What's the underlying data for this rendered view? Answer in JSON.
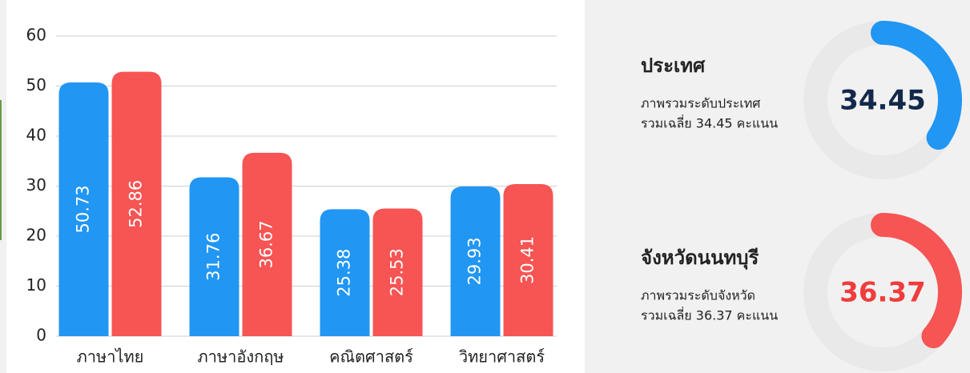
{
  "chart_data": [
    {
      "type": "bar",
      "categories": [
        "ภาษาไทย",
        "ภาษาอังกฤษ",
        "คณิตศาสตร์",
        "วิทยาศาสตร์"
      ],
      "series": [
        {
          "color": "#2196f3",
          "values": [
            50.73,
            31.76,
            25.38,
            29.93
          ]
        },
        {
          "color": "#f75454",
          "values": [
            52.86,
            36.67,
            25.53,
            30.41
          ]
        }
      ],
      "ylim": [
        0,
        60
      ],
      "yticks": [
        0,
        10,
        20,
        30,
        40,
        50,
        60
      ],
      "grid": true
    },
    {
      "type": "donut",
      "title": "ประเทศ",
      "description": [
        "ภาพรวมระดับประเทศ",
        "รวมเฉลี่ย 34.45 คะแนน"
      ],
      "value": 34.45,
      "color": "#2196f3",
      "label_color": "#13294b",
      "ylim": [
        0,
        100
      ]
    },
    {
      "type": "donut",
      "title": "จังหวัดนนทบุรี",
      "description": [
        "ภาพรวมระดับจังหวัด",
        "รวมเฉลี่ย 36.37 คะแนน"
      ],
      "value": 36.37,
      "color": "#f75454",
      "label_color": "#f03c3c",
      "ylim": [
        0,
        100
      ]
    }
  ]
}
